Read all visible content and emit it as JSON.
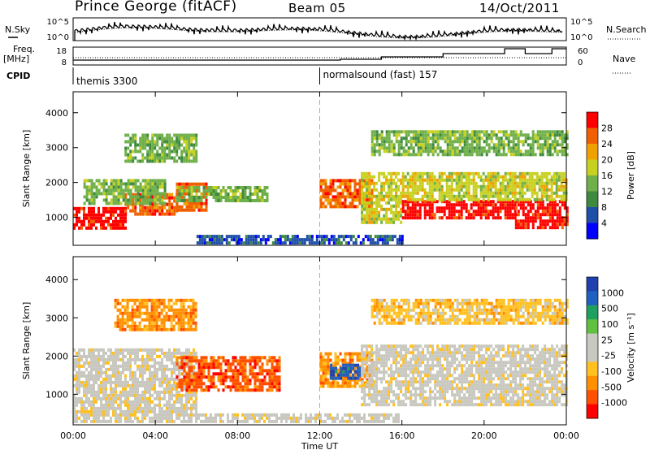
{
  "header": {
    "title": "Prince George (fitACF)",
    "beam": "Beam 05",
    "date": "14/Oct/2011"
  },
  "top_panels": {
    "nsky_label": "N.Sky",
    "nsearch_label": "N.Search",
    "left_ticks": [
      "10^5",
      "10^0"
    ],
    "right_ticks": [
      "10^5",
      "10^0"
    ],
    "freq_label": "Freq.",
    "freq_unit": "[MHz]",
    "freq_ticks": [
      "18",
      "8"
    ],
    "nave_label": "Nave",
    "nave_ticks": [
      "60",
      "0"
    ],
    "cpid_label": "CPID",
    "modes": [
      "themis 3300",
      "normalsound (fast) 157"
    ]
  },
  "colors": {
    "power_scale": [
      "#0000ff",
      "#1f4fa8",
      "#3f8a3f",
      "#6fb04a",
      "#c8d020",
      "#f0a000",
      "#f06000",
      "#ff0000"
    ],
    "velocity_scale": [
      "#ff0000",
      "#ff5000",
      "#ff9000",
      "#ffc020",
      "#c8c8c0",
      "#c8c8c0",
      "#60c040",
      "#20a060",
      "#2060c0",
      "#2040b0"
    ],
    "echo_grey": "#c8c8c0"
  },
  "chart_data": [
    {
      "type": "heatmap",
      "name": "power",
      "ylabel": "Slant Range [km]",
      "yticks": [
        1000,
        2000,
        3000,
        4000
      ],
      "ylim": [
        200,
        4600
      ],
      "xlim": [
        0,
        24
      ],
      "colorbar": {
        "label": "Power [dB]",
        "ticks": [
          "4",
          "8",
          "12",
          "16",
          "20",
          "24",
          "28"
        ]
      },
      "bands": [
        {
          "t0": 0.0,
          "t1": 2.5,
          "r0": 700,
          "r1": 1300,
          "level": 7
        },
        {
          "t0": 2.5,
          "t1": 5.0,
          "r0": 1100,
          "r1": 1700,
          "level": 6
        },
        {
          "t0": 0.5,
          "t1": 4.5,
          "r0": 1400,
          "r1": 2100,
          "level": 3
        },
        {
          "t0": 5.0,
          "t1": 6.5,
          "r0": 1200,
          "r1": 2000,
          "level": 6
        },
        {
          "t0": 5.0,
          "t1": 9.5,
          "r0": 1500,
          "r1": 1900,
          "level": 3
        },
        {
          "t0": 2.5,
          "t1": 6.0,
          "r0": 2600,
          "r1": 3400,
          "level": 3
        },
        {
          "t0": 12.0,
          "t1": 14.5,
          "r0": 1300,
          "r1": 2100,
          "level": 6
        },
        {
          "t0": 14.0,
          "t1": 16.0,
          "r0": 900,
          "r1": 2300,
          "level": 4
        },
        {
          "t0": 16.0,
          "t1": 21.5,
          "r0": 1000,
          "r1": 1500,
          "level": 7
        },
        {
          "t0": 21.5,
          "t1": 24.0,
          "r0": 700,
          "r1": 1500,
          "level": 7
        },
        {
          "t0": 16.0,
          "t1": 24.0,
          "r0": 1500,
          "r1": 2300,
          "level": 4
        },
        {
          "t0": 14.5,
          "t1": 24.0,
          "r0": 2800,
          "r1": 3500,
          "level": 3
        },
        {
          "t0": 6.0,
          "t1": 16.0,
          "r0": 250,
          "r1": 500,
          "level": 1
        }
      ]
    },
    {
      "type": "heatmap",
      "name": "velocity",
      "ylabel": "Slant Range [km]",
      "yticks": [
        1000,
        2000,
        3000,
        4000
      ],
      "ylim": [
        200,
        4600
      ],
      "xlim": [
        0,
        24
      ],
      "xlabel": "Time UT",
      "xticks": [
        "00:00",
        "04:00",
        "08:00",
        "12:00",
        "16:00",
        "20:00",
        "00:00"
      ],
      "colorbar": {
        "label": "Velocity [m s⁻¹]",
        "ticks": [
          "1000",
          "500",
          "100",
          "25",
          "-25",
          "-100",
          "-500",
          "-1000"
        ]
      },
      "bands": [
        {
          "t0": 0.0,
          "t1": 6.0,
          "r0": 500,
          "r1": 2200,
          "level": 4
        },
        {
          "t0": 5.0,
          "t1": 10.0,
          "r0": 1100,
          "r1": 2000,
          "level": 1
        },
        {
          "t0": 12.0,
          "t1": 14.5,
          "r0": 1200,
          "r1": 2100,
          "level": 2
        },
        {
          "t0": 12.5,
          "t1": 14.0,
          "r0": 1400,
          "r1": 1800,
          "level": 8
        },
        {
          "t0": 14.0,
          "t1": 24.0,
          "r0": 700,
          "r1": 2300,
          "level": 4
        },
        {
          "t0": 2.0,
          "t1": 6.0,
          "r0": 2700,
          "r1": 3500,
          "level": 2
        },
        {
          "t0": 14.5,
          "t1": 24.0,
          "r0": 2900,
          "r1": 3500,
          "level": 3
        },
        {
          "t0": 0.0,
          "t1": 16.0,
          "r0": 250,
          "r1": 500,
          "level": 4
        }
      ]
    }
  ]
}
